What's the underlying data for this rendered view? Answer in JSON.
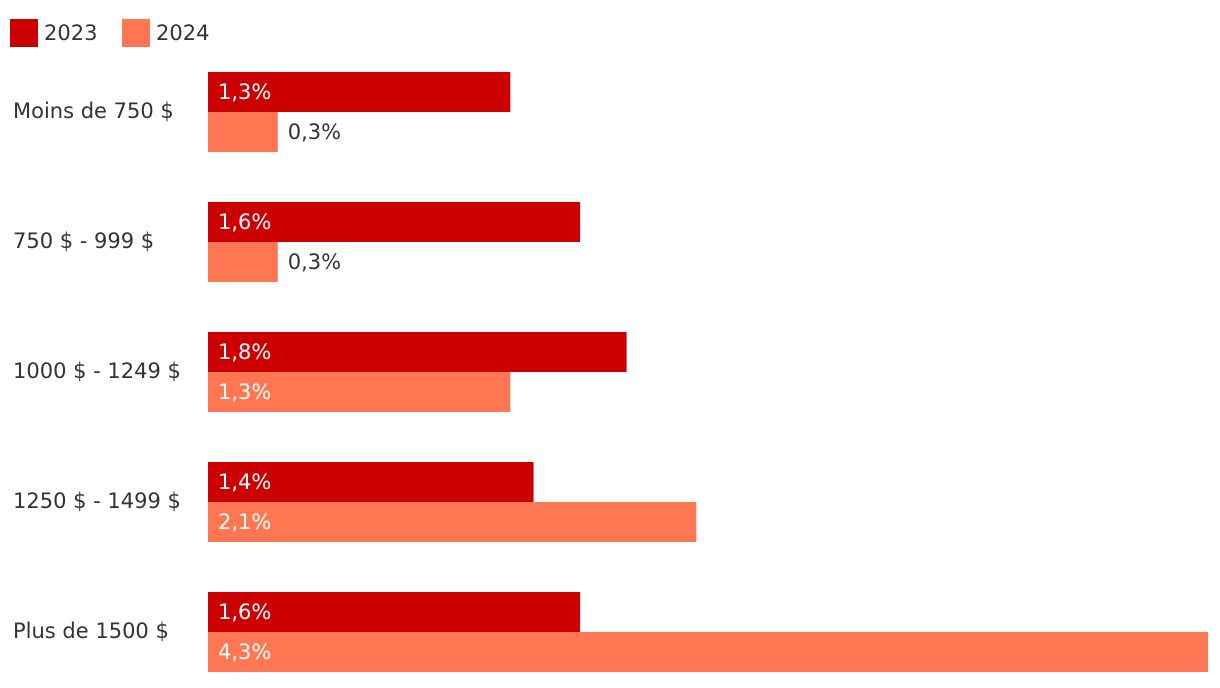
{
  "chart_data": {
    "type": "hbar",
    "categories": [
      "Moins de 750 $",
      "750 $ - 999 $",
      "1000 $ - 1249 $",
      "1250 $ - 1499 $",
      "Plus de 1500 $"
    ],
    "series": [
      {
        "name": "2023",
        "color": "#cc0000",
        "values": [
          1.3,
          1.6,
          1.8,
          1.4,
          1.6
        ],
        "value_labels": [
          "1,3%",
          "1,6%",
          "1,8%",
          "1,4%",
          "1,6%"
        ]
      },
      {
        "name": "2024",
        "color": "#ff7752",
        "values": [
          0.3,
          0.3,
          1.3,
          2.1,
          4.3
        ],
        "value_labels": [
          "0,3%",
          "0,3%",
          "1,3%",
          "2,1%",
          "4,3%"
        ]
      }
    ],
    "legend": "top-left"
  }
}
